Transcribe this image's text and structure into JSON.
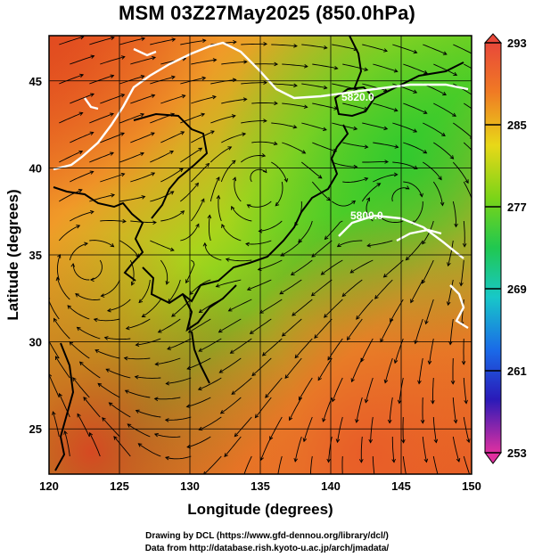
{
  "title": "MSM 03Z27May2025 (850.0hPa)",
  "credits": {
    "line1": "Drawing by DCL (https://www.gfd-dennou.org/library/dcl/)",
    "line2": "Data from http://database.rish.kyoto-u.ac.jp/arch/jmadata/"
  },
  "chart_data": {
    "type": "heatmap",
    "title": "MSM 03Z27May2025 (850.0hPa)",
    "xlabel": "Longitude (degrees)",
    "ylabel": "Latitude (degrees)",
    "xlim": [
      120,
      150
    ],
    "ylim": [
      22.4,
      47.6
    ],
    "xticks": [
      120,
      125,
      130,
      135,
      140,
      145,
      150
    ],
    "yticks": [
      25,
      30,
      35,
      40,
      45
    ],
    "grid": true,
    "colorbar": {
      "range": [
        253,
        293
      ],
      "ticks": [
        293,
        285,
        277,
        269,
        261,
        253
      ],
      "colors": [
        "#e8308c",
        "#7a1fb8",
        "#1a22c8",
        "#1a7ae8",
        "#18c8c8",
        "#22c83a",
        "#7ad418",
        "#d2d815",
        "#f0a020",
        "#f06020",
        "#e03a30"
      ]
    },
    "contours": [
      {
        "label": "5820.0",
        "lon": 141.5,
        "lat": 45.5
      },
      {
        "label": "5800.0",
        "lon": 142.5,
        "lat": 38.2
      }
    ],
    "circulation_centers": [
      {
        "lon": 122.7,
        "lat": 34.5
      },
      {
        "lon": 134.8,
        "lat": 39.5
      },
      {
        "lon": 145.3,
        "lat": 38.3
      }
    ]
  }
}
